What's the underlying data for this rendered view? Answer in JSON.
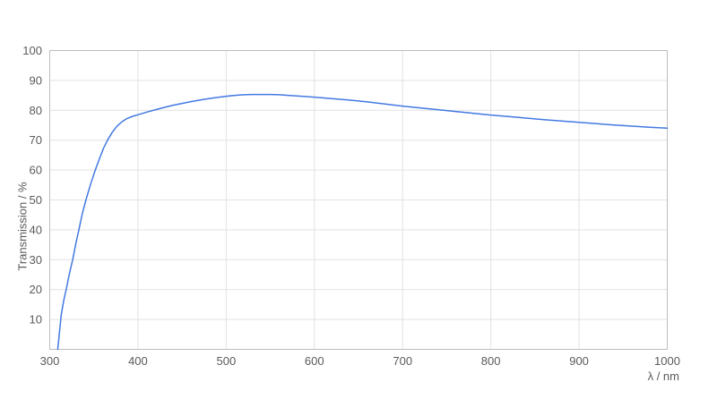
{
  "page": {
    "background": "#ffffff"
  },
  "style": {
    "grid_color": "#e2e2e2",
    "border_color": "#bdbdbd",
    "tick_label_color": "#5a5a5a",
    "axis_title_color": "#5a5a5a"
  },
  "chart_data": {
    "type": "line",
    "title": "",
    "xlabel": "λ / nm",
    "ylabel": "Transmission / %",
    "xlim": [
      300,
      1000
    ],
    "ylim": [
      0,
      100
    ],
    "x_ticks": [
      300,
      400,
      500,
      600,
      700,
      800,
      900,
      1000
    ],
    "y_ticks": [
      10,
      20,
      30,
      40,
      50,
      60,
      70,
      80,
      90,
      100
    ],
    "grid": true,
    "legend_position": "none",
    "series": [
      {
        "name": "Transmission",
        "color": "#4379e2",
        "x": [
          309,
          311,
          313,
          316,
          319,
          322,
          326,
          330,
          333,
          337,
          341,
          346,
          351,
          356,
          361,
          366,
          371,
          376,
          382,
          388,
          394,
          400,
          410,
          420,
          430,
          440,
          450,
          460,
          470,
          480,
          490,
          500,
          510,
          520,
          530,
          540,
          550,
          560,
          570,
          580,
          590,
          600,
          620,
          640,
          660,
          680,
          700,
          720,
          740,
          760,
          780,
          800,
          820,
          840,
          860,
          880,
          900,
          920,
          940,
          960,
          980,
          1000
        ],
        "y": [
          0,
          5.5,
          11.5,
          16.5,
          20.5,
          25,
          30,
          36,
          40,
          45.5,
          50,
          55,
          59.5,
          63.5,
          67.3,
          70.3,
          72.7,
          74.6,
          76.2,
          77.3,
          78.0,
          78.5,
          79.4,
          80.2,
          81.0,
          81.7,
          82.3,
          82.9,
          83.4,
          83.9,
          84.3,
          84.7,
          85.0,
          85.2,
          85.3,
          85.3,
          85.3,
          85.2,
          85.0,
          84.8,
          84.6,
          84.4,
          83.9,
          83.4,
          82.8,
          82.1,
          81.4,
          80.8,
          80.2,
          79.6,
          79.0,
          78.4,
          77.9,
          77.4,
          76.9,
          76.4,
          76.0,
          75.5,
          75.1,
          74.7,
          74.3,
          74.0
        ]
      }
    ]
  }
}
